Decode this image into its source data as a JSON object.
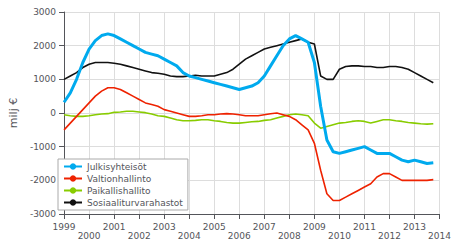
{
  "chart_data": {
    "type": "line",
    "ylabel": "milj €",
    "x": [
      1999.0,
      1999.25,
      1999.5,
      1999.75,
      2000.0,
      2000.25,
      2000.5,
      2000.75,
      2001.0,
      2001.25,
      2001.5,
      2001.75,
      2002.0,
      2002.25,
      2002.5,
      2002.75,
      2003.0,
      2003.25,
      2003.5,
      2003.75,
      2004.0,
      2004.25,
      2004.5,
      2004.75,
      2005.0,
      2005.25,
      2005.5,
      2005.75,
      2006.0,
      2006.25,
      2006.5,
      2006.75,
      2007.0,
      2007.25,
      2007.5,
      2007.75,
      2008.0,
      2008.25,
      2008.5,
      2008.75,
      2009.0,
      2009.25,
      2009.5,
      2009.75,
      2010.0,
      2010.25,
      2010.5,
      2010.75,
      2011.0,
      2011.25,
      2011.5,
      2011.75,
      2012.0,
      2012.25,
      2012.5,
      2012.75,
      2013.0,
      2013.25,
      2013.5,
      2013.75
    ],
    "series": [
      {
        "name": "Julkisyhteisöt",
        "color": "#00aaee",
        "values": [
          320,
          600,
          1000,
          1500,
          1900,
          2150,
          2300,
          2350,
          2300,
          2200,
          2100,
          2000,
          1900,
          1800,
          1750,
          1700,
          1600,
          1500,
          1400,
          1200,
          1100,
          1050,
          1000,
          950,
          900,
          850,
          800,
          750,
          700,
          750,
          800,
          900,
          1100,
          1400,
          1700,
          2000,
          2200,
          2300,
          2200,
          2100,
          1500,
          200,
          -800,
          -1150,
          -1200,
          -1150,
          -1100,
          -1050,
          -1000,
          -1100,
          -1200,
          -1200,
          -1200,
          -1300,
          -1400,
          -1450,
          -1400,
          -1450,
          -1500,
          -1480
        ]
      },
      {
        "name": "Valtionhallinto",
        "color": "#ee2200",
        "values": [
          -500,
          -300,
          -100,
          100,
          300,
          500,
          650,
          750,
          750,
          700,
          600,
          500,
          400,
          300,
          250,
          200,
          100,
          50,
          0,
          -50,
          -100,
          -100,
          -80,
          -50,
          -50,
          -30,
          -20,
          -30,
          -50,
          -80,
          -80,
          -80,
          -50,
          -20,
          0,
          -50,
          -100,
          -200,
          -350,
          -500,
          -900,
          -1700,
          -2400,
          -2600,
          -2600,
          -2500,
          -2400,
          -2300,
          -2200,
          -2100,
          -1900,
          -1800,
          -1800,
          -1900,
          -2000,
          -2000,
          -2000,
          -2000,
          -2000,
          -1980
        ]
      },
      {
        "name": "Paikallishallito",
        "color": "#88cc00",
        "values": [
          -50,
          -80,
          -100,
          -100,
          -80,
          -50,
          -30,
          -20,
          20,
          30,
          50,
          50,
          30,
          10,
          -30,
          -80,
          -100,
          -150,
          -200,
          -230,
          -230,
          -220,
          -200,
          -200,
          -230,
          -250,
          -280,
          -300,
          -300,
          -280,
          -260,
          -250,
          -220,
          -200,
          -150,
          -100,
          -50,
          -30,
          -50,
          -80,
          -300,
          -450,
          -400,
          -350,
          -300,
          -280,
          -250,
          -230,
          -250,
          -300,
          -250,
          -200,
          -200,
          -230,
          -250,
          -280,
          -300,
          -320,
          -330,
          -320
        ]
      },
      {
        "name": "Sosiaaliturvarahastot",
        "color": "#111111",
        "values": [
          1000,
          1100,
          1200,
          1350,
          1450,
          1500,
          1500,
          1500,
          1480,
          1450,
          1400,
          1350,
          1300,
          1250,
          1200,
          1180,
          1150,
          1100,
          1080,
          1080,
          1100,
          1120,
          1100,
          1100,
          1100,
          1150,
          1200,
          1300,
          1450,
          1600,
          1700,
          1800,
          1900,
          1950,
          2000,
          2050,
          2100,
          2150,
          2200,
          2100,
          2050,
          1100,
          1000,
          1000,
          1300,
          1380,
          1400,
          1400,
          1380,
          1380,
          1350,
          1350,
          1380,
          1380,
          1350,
          1300,
          1200,
          1100,
          1000,
          900
        ]
      }
    ],
    "xlim": [
      1999,
      2014
    ],
    "xticks": [
      1999,
      2000,
      2001,
      2002,
      2003,
      2004,
      2005,
      2006,
      2007,
      2008,
      2009,
      2010,
      2011,
      2012,
      2013,
      2014
    ],
    "ylim": [
      -3000,
      3000
    ],
    "yticks": [
      -3000,
      -2000,
      -1000,
      0,
      1000,
      2000,
      3000
    ],
    "grid": true,
    "legend": "lower left"
  }
}
